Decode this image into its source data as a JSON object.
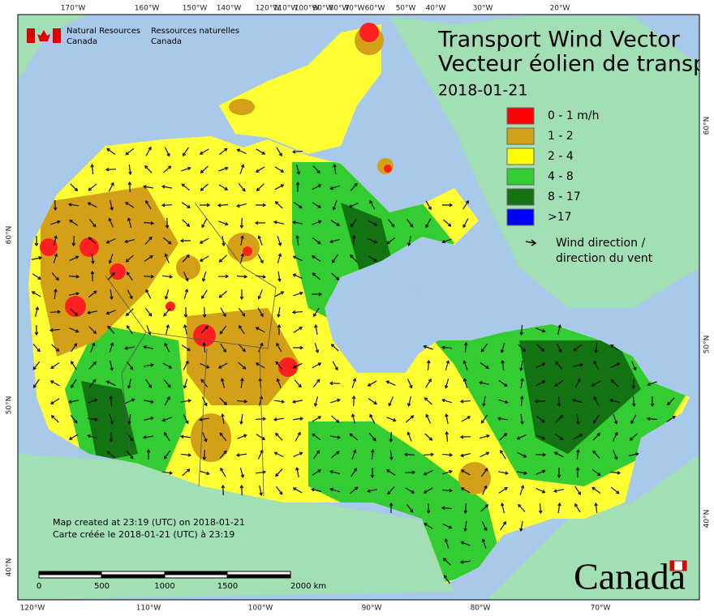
{
  "header": {
    "agency": [
      "Natural Resources",
      "Canada"
    ],
    "agency_fr": [
      "Ressources naturelles",
      "Canada"
    ]
  },
  "title": [
    "Transport Wind Vector",
    "Vecteur éolien de transp"
  ],
  "date": "2018-01-21",
  "legend": {
    "items": [
      {
        "label": "0 - 1 m/h",
        "color": "#ff0000"
      },
      {
        "label": "1 - 2",
        "color": "#d4a017"
      },
      {
        "label": "2 - 4",
        "color": "#ffff00"
      },
      {
        "label": "4 - 8",
        "color": "#33cc33"
      },
      {
        "label": "8 - 17",
        "color": "#137313"
      },
      {
        "label": ">17",
        "color": "#0000ff"
      }
    ],
    "wind": [
      "Wind direction /",
      "direction du vent"
    ]
  },
  "graticule": {
    "top": [
      "170°W",
      "160°W",
      "150°W",
      "140°W",
      "120°W",
      "110°W",
      "100°W",
      "90°W",
      "80°W",
      "70°W",
      "60°W",
      "50°W",
      "40°W",
      "30°W",
      "20°W"
    ],
    "bottom": [
      "120°W",
      "110°W",
      "100°W",
      "90°W",
      "80°W",
      "70°W"
    ],
    "left": [
      "60°N",
      "50°N",
      "40°N"
    ],
    "right": [
      "60°N",
      "50°N",
      "40°N"
    ]
  },
  "scale": {
    "labels": [
      "0",
      "500",
      "1000",
      "1500",
      "2000 km"
    ]
  },
  "footer": [
    "Map created at 23:19 (UTC) on 2018-01-21",
    "Carte créée le 2018-01-21 (UTC) à 23:19"
  ],
  "wordmark": "Canada"
}
